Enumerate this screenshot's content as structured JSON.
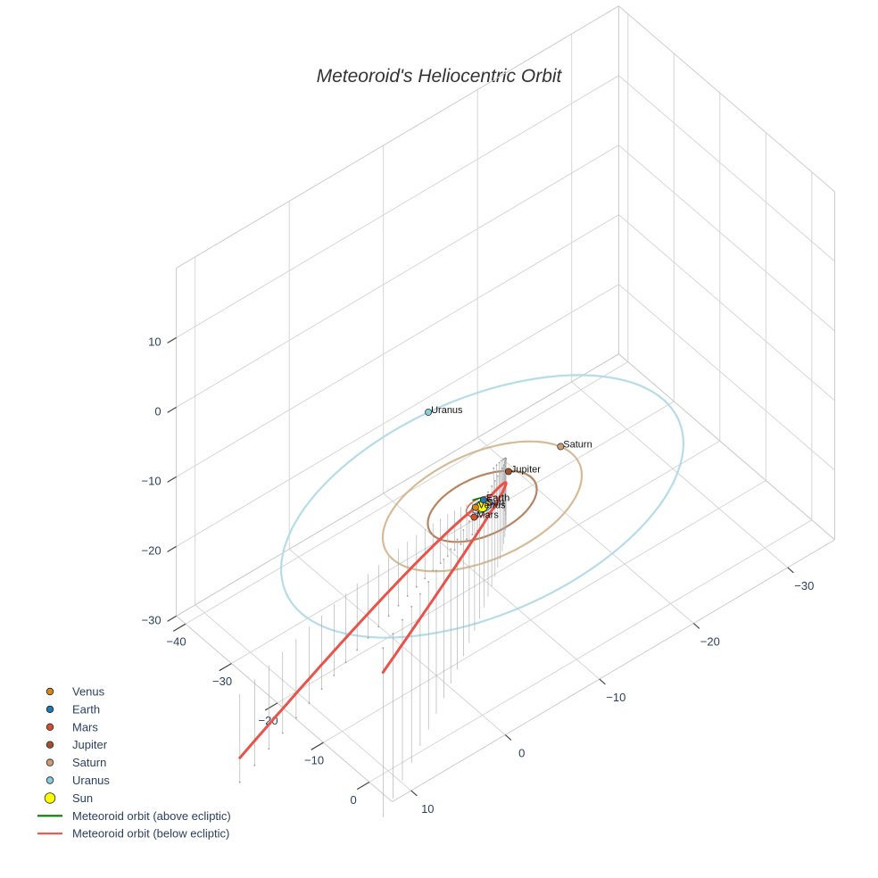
{
  "chart_data": {
    "type": "scatter3d",
    "title": "Meteoroid's Heliocentric Orbit",
    "axes": {
      "x": {
        "range": [
          -35,
          12
        ],
        "ticks": [
          -30,
          -20,
          -10,
          0,
          10
        ],
        "tick_labels": [
          "−30",
          "−20",
          "−10",
          "0",
          "10"
        ]
      },
      "y": {
        "range": [
          -42,
          5
        ],
        "ticks": [
          -40,
          -30,
          -20,
          -10,
          0
        ],
        "tick_labels": [
          "−40",
          "−30",
          "−20",
          "−10",
          "0"
        ]
      },
      "z": {
        "range": [
          -30,
          20
        ],
        "ticks": [
          -30,
          -20,
          -10,
          0,
          10
        ],
        "tick_labels": [
          "−30",
          "−20",
          "−10",
          "0",
          "10"
        ]
      }
    },
    "planets": [
      {
        "name": "Venus",
        "color": "#d4881f",
        "x": 0.5,
        "y": -0.45,
        "z": 0,
        "orbit_radius": 0.72,
        "orbit_color": "#d4881f"
      },
      {
        "name": "Earth",
        "color": "#1f77b4",
        "x": -0.55,
        "y": -0.85,
        "z": 0,
        "orbit_radius": 1.0,
        "orbit_color": "#1f77b4"
      },
      {
        "name": "Mars",
        "color": "#d2502d",
        "x": 1.3,
        "y": 0.9,
        "z": 0,
        "orbit_radius": 1.52,
        "orbit_color": "#d2502d"
      },
      {
        "name": "Jupiter",
        "color": "#a0522d",
        "x": -4.2,
        "y": -2.9,
        "z": 0,
        "orbit_radius": 5.2,
        "orbit_color": "#b07850"
      },
      {
        "name": "Saturn",
        "color": "#cd9c76",
        "x": -9.3,
        "y": -2.0,
        "z": 0,
        "orbit_radius": 9.5,
        "orbit_color": "#d2b48c"
      },
      {
        "name": "Uranus",
        "color": "#87ceda",
        "x": -3.5,
        "y": -18.9,
        "z": 0,
        "orbit_radius": 19.2,
        "orbit_color": "#add8e6"
      }
    ],
    "sun": {
      "name": "Sun",
      "color": "#ffff00",
      "x": 0,
      "y": 0,
      "z": 0
    },
    "meteoroid_orbit": {
      "above_label": "Meteoroid orbit (above ecliptic)",
      "below_label": "Meteoroid orbit (below ecliptic)",
      "above_color": "#008000",
      "below_color": "#e8534a",
      "perihelion_q": 1.1,
      "t_range": [
        -6.5,
        5.1
      ],
      "peri_angle_deg": 215,
      "z_per_t": [
        -3.2,
        -1.8
      ]
    },
    "legend": {
      "position": "bottom-left",
      "entries": [
        {
          "label": "Venus",
          "symbol": "dot",
          "color": "#d4881f"
        },
        {
          "label": "Earth",
          "symbol": "dot",
          "color": "#1f77b4"
        },
        {
          "label": "Mars",
          "symbol": "dot",
          "color": "#d2502d"
        },
        {
          "label": "Jupiter",
          "symbol": "dot",
          "color": "#a0522d"
        },
        {
          "label": "Saturn",
          "symbol": "dot",
          "color": "#cd9c76"
        },
        {
          "label": "Uranus",
          "symbol": "dot",
          "color": "#87ceda"
        },
        {
          "label": "Sun",
          "symbol": "bigdot",
          "color": "#ffff00"
        },
        {
          "label": "Meteoroid orbit (above ecliptic)",
          "symbol": "line",
          "color": "#008000"
        },
        {
          "label": "Meteoroid orbit (below ecliptic)",
          "symbol": "line",
          "color": "#e8534a"
        }
      ]
    }
  }
}
